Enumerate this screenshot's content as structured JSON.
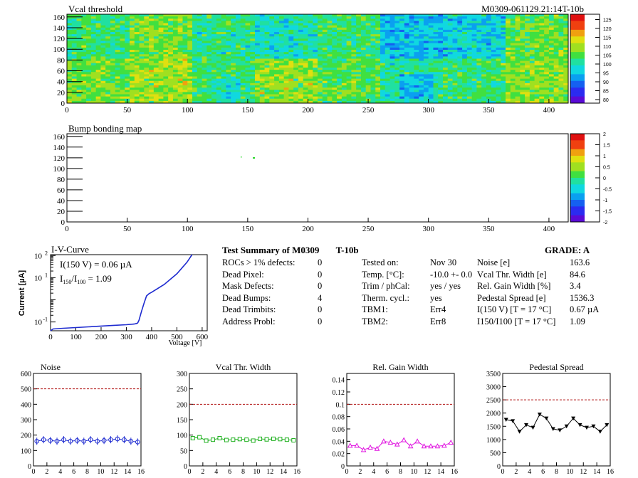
{
  "header": {
    "module_id": "M0309-061129.21:14T-10b"
  },
  "vcal_map": {
    "title": "Vcal threshold",
    "x_ticks": [
      "0",
      "50",
      "100",
      "150",
      "200",
      "250",
      "300",
      "350",
      "400"
    ],
    "y_ticks": [
      "0",
      "20",
      "40",
      "60",
      "80",
      "100",
      "120",
      "140",
      "160"
    ],
    "scale_labels": [
      "80",
      "85",
      "90",
      "95",
      "100",
      "105",
      "110",
      "115",
      "120",
      "125"
    ],
    "scale_colors": [
      "#5a0bd6",
      "#2b2bf0",
      "#1560f0",
      "#0aa0f0",
      "#10d8e0",
      "#20e0a0",
      "#40e040",
      "#a0e020",
      "#e0e010",
      "#f0a010",
      "#f04010",
      "#e01010"
    ]
  },
  "bump_map": {
    "title": "Bump bonding map",
    "x_ticks": [
      "0",
      "50",
      "100",
      "150",
      "200",
      "250",
      "300",
      "350",
      "400"
    ],
    "y_ticks": [
      "0",
      "20",
      "40",
      "60",
      "80",
      "100",
      "120",
      "140",
      "160"
    ],
    "scale_labels": [
      "-2",
      "-1.5",
      "-1",
      "-0.5",
      "0",
      "0.5",
      "1",
      "1.5",
      "2"
    ]
  },
  "iv_curve": {
    "title": "I-V-Curve",
    "ylabel": "Current [µA]",
    "xlabel": "Voltage [V]",
    "x_ticks": [
      "0",
      "100",
      "200",
      "300",
      "400",
      "500",
      "600"
    ],
    "y_ticks_exp": [
      "-1",
      "1",
      "2"
    ],
    "annot1": "I(150 V) = 0.06 µA",
    "annot2_main": "I",
    "annot2_sub1": "150",
    "annot2_mid": "/I",
    "annot2_sub2": "100",
    "annot2_val": " =  1.09"
  },
  "summary": {
    "title": "Test Summary of M0309",
    "tag": "T-10b",
    "grade": "GRADE:  A",
    "left_rows": [
      {
        "label": "ROCs > 1% defects:",
        "value": "0"
      },
      {
        "label": "Dead Pixel:",
        "value": "0"
      },
      {
        "label": "Mask Defects:",
        "value": "0"
      },
      {
        "label": "Dead Bumps:",
        "value": "4"
      },
      {
        "label": "Dead Trimbits:",
        "value": "0"
      },
      {
        "label": "Address Probl:",
        "value": "0"
      }
    ],
    "mid_rows": [
      {
        "label": "Tested on:",
        "value": "Nov 30"
      },
      {
        "label": "Temp. [°C]:",
        "value": "-10.0 +- 0.0"
      },
      {
        "label": "Trim / phCal:",
        "value": "yes / yes"
      },
      {
        "label": "Therm. cycl.:",
        "value": "yes"
      },
      {
        "label": "TBM1:",
        "value": "Err4"
      },
      {
        "label": "TBM2:",
        "value": "Err8"
      }
    ],
    "right_rows": [
      {
        "label": "Noise [e]",
        "value": "163.6"
      },
      {
        "label": "Vcal Thr. Width [e]",
        "value": "84.6"
      },
      {
        "label": "Rel. Gain Width [%]",
        "value": "3.4"
      },
      {
        "label": "Pedestal Spread [e]",
        "value": "1536.3"
      },
      {
        "label": "I(150 V) [T = 17 °C]",
        "value": "0.67 µA"
      },
      {
        "label": "I150/I100  [T = 17 °C]",
        "value": "1.09"
      }
    ]
  },
  "chart_data": [
    {
      "type": "heatmap",
      "title": "Vcal threshold",
      "xlim": [
        0,
        416
      ],
      "ylim": [
        0,
        160
      ],
      "zlim": [
        80,
        128
      ],
      "rows": 2,
      "cols": 8,
      "block_mean": [
        [
          104,
          108,
          103,
          100,
          104,
          96,
          98,
          107
        ],
        [
          108,
          110,
          104,
          109,
          106,
          102,
          104,
          109
        ]
      ]
    },
    {
      "type": "heatmap",
      "title": "Bump bonding map",
      "xlim": [
        0,
        416
      ],
      "ylim": [
        0,
        160
      ],
      "zlim": [
        -2,
        2
      ]
    },
    {
      "type": "line",
      "title": "I-V-Curve",
      "xlabel": "Voltage [V]",
      "ylabel": "Current [µA]",
      "xlim": [
        0,
        600
      ],
      "ylim": [
        0.05,
        100
      ],
      "log_y": true,
      "x": [
        0,
        10,
        50,
        100,
        150,
        200,
        250,
        300,
        330,
        340,
        345,
        350,
        360,
        370,
        380,
        390,
        400,
        450,
        500,
        540,
        560
      ],
      "y": [
        0.04,
        0.048,
        0.052,
        0.056,
        0.06,
        0.065,
        0.07,
        0.075,
        0.08,
        0.085,
        0.09,
        0.12,
        0.3,
        0.7,
        1.5,
        1.9,
        2.2,
        5,
        15,
        50,
        110
      ]
    },
    {
      "type": "line",
      "title": "Noise",
      "xlim": [
        0,
        16
      ],
      "ylim": [
        0,
        600
      ],
      "ref_line": 500,
      "x": [
        0,
        1,
        2,
        3,
        4,
        5,
        6,
        7,
        8,
        9,
        10,
        11,
        12,
        13,
        14,
        15
      ],
      "y": [
        160,
        170,
        165,
        160,
        170,
        160,
        165,
        160,
        170,
        160,
        165,
        170,
        175,
        170,
        160,
        155
      ],
      "color": "#1e2bd0",
      "marker": "circle-open"
    },
    {
      "type": "line",
      "title": "Vcal Thr. Width",
      "xlim": [
        0,
        16
      ],
      "ylim": [
        0,
        300
      ],
      "ref_line": 200,
      "x": [
        0,
        1,
        2,
        3,
        4,
        5,
        6,
        7,
        8,
        9,
        10,
        11,
        12,
        13,
        14,
        15
      ],
      "y": [
        90,
        93,
        82,
        85,
        90,
        84,
        85,
        87,
        85,
        82,
        88,
        86,
        88,
        87,
        85,
        83
      ],
      "color": "#1fb01f",
      "marker": "square-open"
    },
    {
      "type": "line",
      "title": "Rel. Gain Width",
      "xlim": [
        0,
        16
      ],
      "ylim": [
        0,
        0.15
      ],
      "ref_line": 0.1,
      "x": [
        0,
        1,
        2,
        3,
        4,
        5,
        6,
        7,
        8,
        9,
        10,
        11,
        12,
        13,
        14,
        15
      ],
      "y": [
        0.033,
        0.033,
        0.026,
        0.03,
        0.028,
        0.04,
        0.038,
        0.035,
        0.042,
        0.032,
        0.04,
        0.032,
        0.032,
        0.032,
        0.033,
        0.038
      ],
      "color": "#e010e0",
      "marker": "triangle-open"
    },
    {
      "type": "line",
      "title": "Pedestal Spread",
      "xlim": [
        0,
        16
      ],
      "ylim": [
        0,
        3500
      ],
      "ref_line": 2500,
      "x": [
        0,
        1,
        2,
        3,
        4,
        5,
        6,
        7,
        8,
        9,
        10,
        11,
        12,
        13,
        14,
        15
      ],
      "y": [
        1750,
        1700,
        1300,
        1550,
        1450,
        1950,
        1800,
        1400,
        1350,
        1500,
        1800,
        1550,
        1450,
        1500,
        1300,
        1550
      ],
      "color": "#000000",
      "marker": "triangle-down"
    }
  ]
}
